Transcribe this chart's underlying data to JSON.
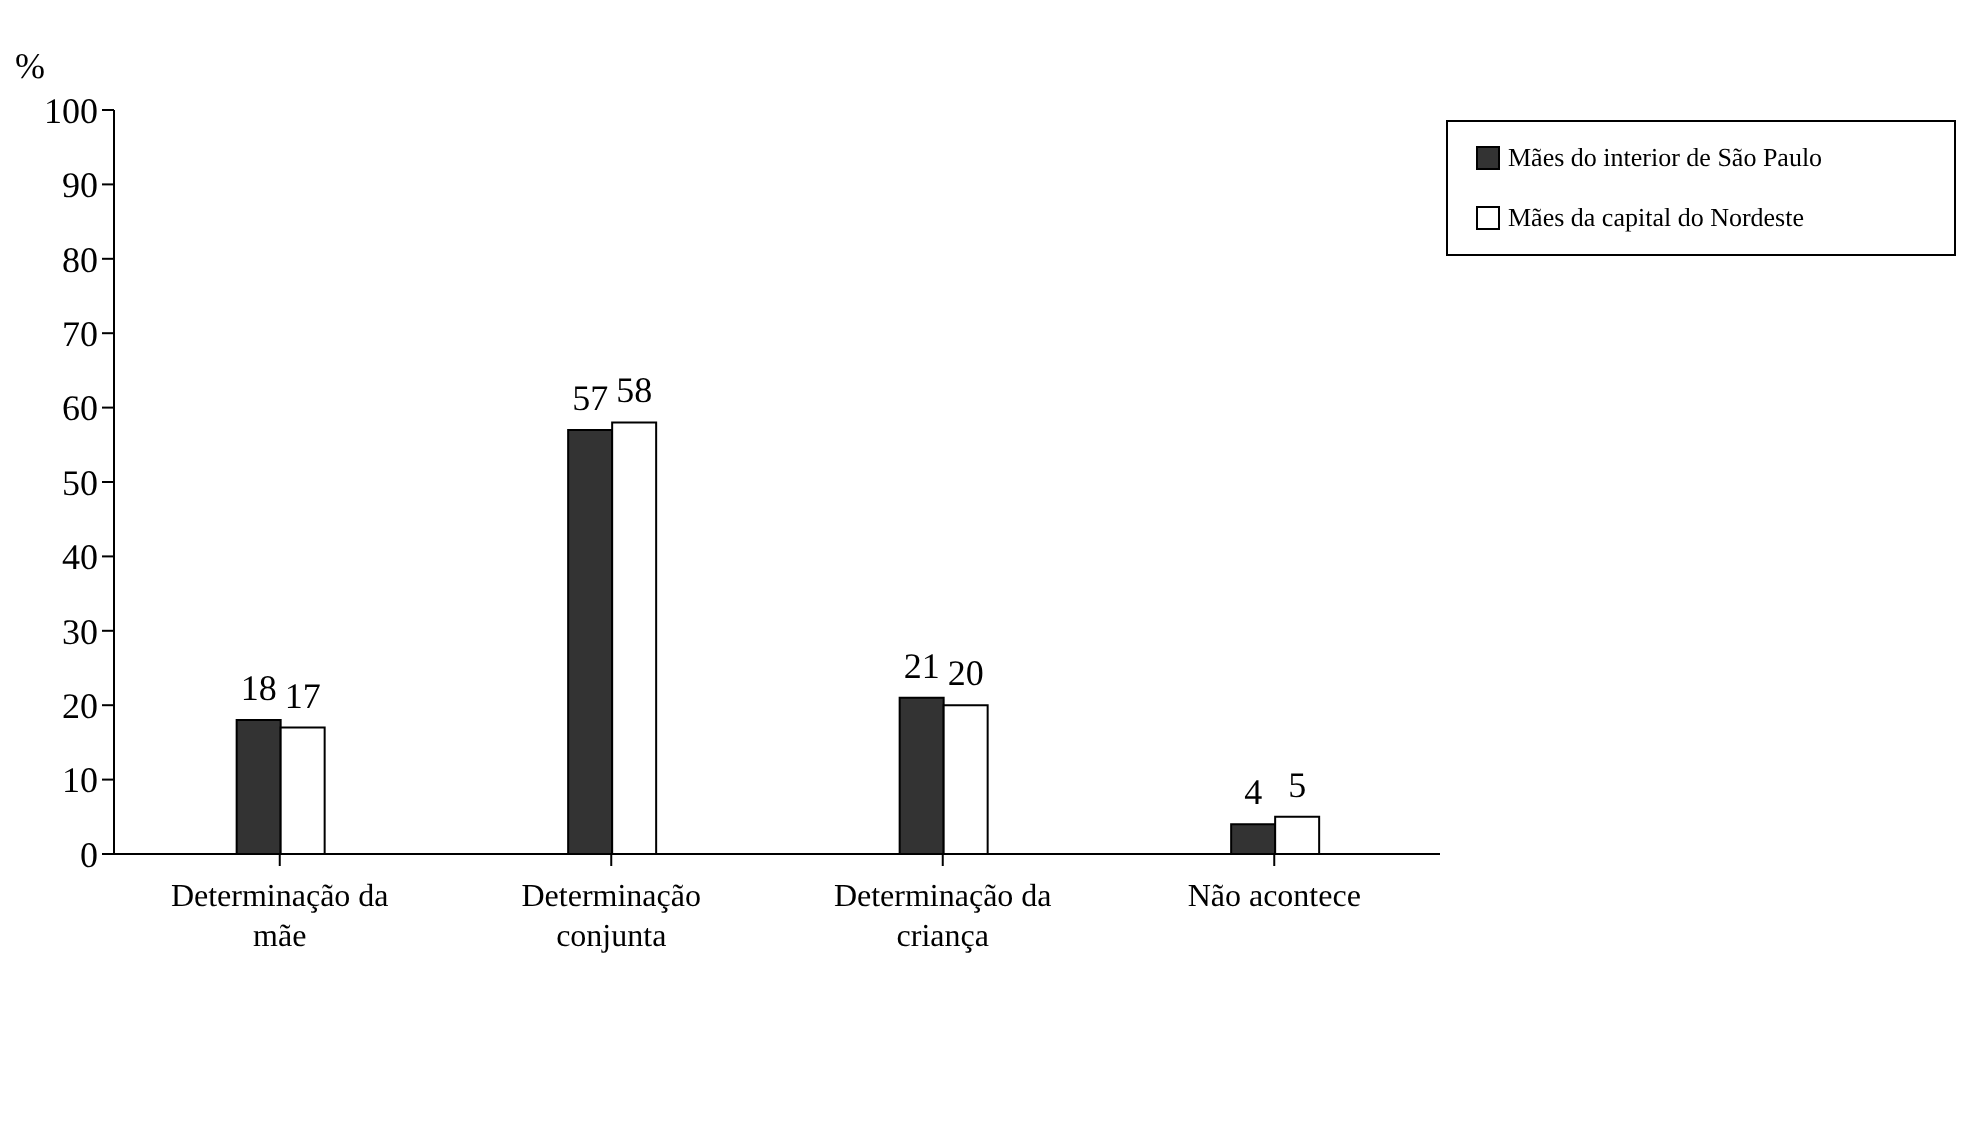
{
  "chart_data": {
    "type": "bar",
    "ylabel": "%",
    "categories": [
      "Determinação da mãe",
      "Determinação conjunta",
      "Determinação da criança",
      "Não acontece"
    ],
    "series": [
      {
        "name": "Mães do interior de São Paulo",
        "color": "#333333",
        "values": [
          18,
          57,
          21,
          4
        ]
      },
      {
        "name": "Mães da capital do Nordeste",
        "color": "#ffffff",
        "values": [
          17,
          58,
          20,
          5
        ]
      }
    ],
    "ylim": [
      0,
      100
    ],
    "yticks": [
      0,
      10,
      20,
      30,
      40,
      50,
      60,
      70,
      80,
      90,
      100
    ],
    "grid": false,
    "legend": "top right",
    "data_labels": true
  }
}
